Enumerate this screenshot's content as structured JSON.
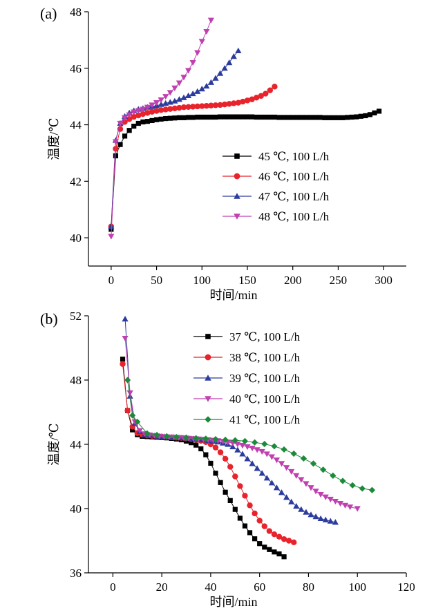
{
  "chart_data": [
    {
      "panel": "(a)",
      "type": "line",
      "marker_lines": true,
      "xlabel": "时间/min",
      "ylabel": "温度/℃",
      "xlim": [
        -25,
        325
      ],
      "ylim": [
        39,
        48
      ],
      "xticks": [
        0,
        50,
        100,
        150,
        200,
        250,
        300
      ],
      "yticks": [
        40,
        42,
        44,
        46,
        48
      ],
      "legend_position": "center-right",
      "series": [
        {
          "name": "45 ℃, 100 L/h",
          "color": "#000000",
          "marker": "square",
          "x": [
            0,
            5,
            10,
            15,
            20,
            25,
            30,
            35,
            40,
            45,
            50,
            55,
            60,
            65,
            70,
            75,
            80,
            85,
            90,
            95,
            100,
            105,
            110,
            115,
            120,
            125,
            130,
            135,
            140,
            145,
            150,
            155,
            160,
            165,
            170,
            175,
            180,
            185,
            190,
            195,
            200,
            205,
            210,
            215,
            220,
            225,
            230,
            235,
            240,
            245,
            250,
            255,
            260,
            265,
            270,
            275,
            280,
            285,
            290,
            295
          ],
          "y": [
            40.3,
            42.9,
            43.3,
            43.6,
            43.8,
            43.95,
            44.05,
            44.1,
            44.12,
            44.15,
            44.18,
            44.2,
            44.22,
            44.23,
            44.24,
            44.25,
            44.25,
            44.26,
            44.26,
            44.27,
            44.27,
            44.27,
            44.27,
            44.27,
            44.28,
            44.28,
            44.28,
            44.28,
            44.28,
            44.28,
            44.28,
            44.28,
            44.27,
            44.27,
            44.27,
            44.27,
            44.27,
            44.26,
            44.26,
            44.26,
            44.26,
            44.26,
            44.26,
            44.26,
            44.26,
            44.26,
            44.26,
            44.25,
            44.25,
            44.25,
            44.25,
            44.25,
            44.26,
            44.27,
            44.28,
            44.3,
            44.32,
            44.36,
            44.42,
            44.48
          ]
        },
        {
          "name": "46 ℃, 100 L/h",
          "color": "#e8232b",
          "marker": "circle",
          "x": [
            0,
            5,
            10,
            15,
            20,
            25,
            30,
            35,
            40,
            45,
            50,
            55,
            60,
            65,
            70,
            75,
            80,
            85,
            90,
            95,
            100,
            105,
            110,
            115,
            120,
            125,
            130,
            135,
            140,
            145,
            150,
            155,
            160,
            165,
            170,
            175,
            180
          ],
          "y": [
            40.4,
            43.15,
            43.85,
            44.1,
            44.2,
            44.28,
            44.33,
            44.38,
            44.42,
            44.46,
            44.49,
            44.52,
            44.54,
            44.56,
            44.58,
            44.6,
            44.62,
            44.63,
            44.64,
            44.65,
            44.66,
            44.67,
            44.68,
            44.69,
            44.7,
            44.72,
            44.74,
            44.76,
            44.78,
            44.82,
            44.86,
            44.9,
            44.96,
            45.02,
            45.1,
            45.22,
            45.35
          ]
        },
        {
          "name": "47 ℃, 100 L/h",
          "color": "#2b3c9e",
          "marker": "triangle-up",
          "x": [
            0,
            5,
            10,
            15,
            20,
            25,
            30,
            35,
            40,
            45,
            50,
            55,
            60,
            65,
            70,
            75,
            80,
            85,
            90,
            95,
            100,
            105,
            110,
            115,
            120,
            125,
            130,
            135,
            140
          ],
          "y": [
            40.4,
            43.45,
            44.05,
            44.3,
            44.42,
            44.5,
            44.55,
            44.58,
            44.62,
            44.65,
            44.68,
            44.72,
            44.76,
            44.8,
            44.84,
            44.9,
            44.96,
            45.03,
            45.1,
            45.18,
            45.27,
            45.37,
            45.5,
            45.65,
            45.82,
            46.0,
            46.2,
            46.42,
            46.62
          ]
        },
        {
          "name": "48 ℃, 100 L/h",
          "color": "#c040b0",
          "marker": "triangle-down",
          "x": [
            0,
            5,
            10,
            15,
            20,
            25,
            30,
            35,
            40,
            45,
            50,
            55,
            60,
            65,
            70,
            75,
            80,
            85,
            90,
            95,
            100,
            105,
            110
          ],
          "y": [
            40.05,
            43.4,
            44.05,
            44.25,
            44.35,
            44.45,
            44.5,
            44.55,
            44.62,
            44.7,
            44.78,
            44.88,
            45.0,
            45.14,
            45.3,
            45.48,
            45.68,
            45.92,
            46.2,
            46.55,
            46.95,
            47.3,
            47.7
          ]
        }
      ]
    },
    {
      "panel": "(b)",
      "type": "line",
      "marker_lines": true,
      "xlabel": "时间/min",
      "ylabel": "温度/℃",
      "xlim": [
        -10,
        120
      ],
      "ylim": [
        36,
        52
      ],
      "xticks": [
        0,
        20,
        40,
        60,
        80,
        100,
        120
      ],
      "yticks": [
        36,
        40,
        44,
        48,
        52
      ],
      "legend_position": "top-right",
      "series": [
        {
          "name": "37 ℃, 100 L/h",
          "color": "#000000",
          "marker": "square",
          "x": [
            4,
            6,
            8,
            10,
            12,
            14,
            16,
            18,
            20,
            22,
            24,
            26,
            28,
            30,
            32,
            34,
            36,
            38,
            40,
            42,
            44,
            46,
            48,
            50,
            52,
            54,
            56,
            58,
            60,
            62,
            64,
            66,
            68,
            70
          ],
          "y": [
            49.3,
            46.1,
            44.9,
            44.6,
            44.5,
            44.48,
            44.46,
            44.44,
            44.42,
            44.4,
            44.37,
            44.33,
            44.28,
            44.2,
            44.1,
            43.95,
            43.72,
            43.35,
            42.82,
            42.2,
            41.62,
            41.02,
            40.5,
            39.95,
            39.4,
            38.92,
            38.5,
            38.12,
            37.82,
            37.6,
            37.45,
            37.3,
            37.18,
            37.0
          ]
        },
        {
          "name": "38 ℃, 100 L/h",
          "color": "#e8232b",
          "marker": "circle",
          "x": [
            4,
            6,
            8,
            10,
            12,
            14,
            16,
            18,
            20,
            22,
            24,
            26,
            28,
            30,
            32,
            34,
            36,
            38,
            40,
            42,
            44,
            46,
            48,
            50,
            52,
            54,
            56,
            58,
            60,
            62,
            64,
            66,
            68,
            70,
            72,
            74
          ],
          "y": [
            49.0,
            46.1,
            45.1,
            44.7,
            44.6,
            44.55,
            44.52,
            44.5,
            44.48,
            44.46,
            44.44,
            44.42,
            44.4,
            44.37,
            44.33,
            44.28,
            44.22,
            44.14,
            44.0,
            43.8,
            43.5,
            43.1,
            42.6,
            42.0,
            41.4,
            40.8,
            40.2,
            39.7,
            39.25,
            38.9,
            38.6,
            38.4,
            38.25,
            38.1,
            38.0,
            37.9
          ]
        },
        {
          "name": "39 ℃, 100 L/h",
          "color": "#2b3c9e",
          "marker": "triangle-up",
          "x": [
            5,
            7,
            9,
            11,
            13,
            15,
            17,
            19,
            21,
            23,
            25,
            27,
            29,
            31,
            33,
            35,
            37,
            39,
            41,
            43,
            45,
            47,
            49,
            51,
            53,
            55,
            57,
            59,
            61,
            63,
            65,
            67,
            69,
            71,
            73,
            75,
            77,
            79,
            81,
            83,
            85,
            87,
            89,
            91
          ],
          "y": [
            51.8,
            47.0,
            45.3,
            44.8,
            44.62,
            44.57,
            44.53,
            44.5,
            44.48,
            44.46,
            44.44,
            44.42,
            44.4,
            44.38,
            44.35,
            44.32,
            44.28,
            44.24,
            44.2,
            44.15,
            44.08,
            44.0,
            43.85,
            43.65,
            43.4,
            43.1,
            42.8,
            42.5,
            42.2,
            41.9,
            41.6,
            41.3,
            41.0,
            40.7,
            40.42,
            40.15,
            39.95,
            39.78,
            39.62,
            39.5,
            39.38,
            39.3,
            39.22,
            39.15
          ]
        },
        {
          "name": "40 ℃, 100 L/h",
          "color": "#c040b0",
          "marker": "triangle-down",
          "x": [
            5,
            7,
            9,
            11,
            13,
            15,
            17,
            19,
            21,
            23,
            25,
            27,
            29,
            31,
            33,
            35,
            37,
            39,
            41,
            43,
            45,
            47,
            49,
            51,
            53,
            55,
            57,
            59,
            61,
            63,
            65,
            67,
            69,
            71,
            73,
            75,
            77,
            79,
            81,
            83,
            85,
            87,
            89,
            91,
            93,
            95,
            97,
            100
          ],
          "y": [
            50.6,
            47.2,
            45.4,
            44.85,
            44.65,
            44.58,
            44.54,
            44.5,
            44.47,
            44.45,
            44.43,
            44.41,
            44.39,
            44.37,
            44.35,
            44.33,
            44.31,
            44.28,
            44.25,
            44.22,
            44.18,
            44.13,
            44.08,
            44.01,
            43.93,
            43.85,
            43.76,
            43.66,
            43.55,
            43.4,
            43.22,
            43.02,
            42.8,
            42.55,
            42.3,
            42.05,
            41.8,
            41.55,
            41.3,
            41.08,
            40.88,
            40.72,
            40.58,
            40.45,
            40.32,
            40.2,
            40.1,
            40.0
          ]
        },
        {
          "name": "41 ℃, 100 L/h",
          "color": "#1c8a3a",
          "marker": "diamond",
          "x": [
            6,
            8,
            10,
            14,
            18,
            22,
            26,
            30,
            34,
            38,
            42,
            46,
            50,
            54,
            58,
            62,
            66,
            70,
            74,
            78,
            82,
            86,
            90,
            94,
            98,
            102,
            106
          ],
          "y": [
            48.0,
            45.8,
            45.4,
            44.68,
            44.58,
            44.5,
            44.45,
            44.42,
            44.38,
            44.35,
            44.32,
            44.28,
            44.25,
            44.2,
            44.12,
            44.02,
            43.88,
            43.68,
            43.42,
            43.12,
            42.8,
            42.42,
            42.05,
            41.72,
            41.45,
            41.25,
            41.15
          ]
        }
      ]
    }
  ]
}
